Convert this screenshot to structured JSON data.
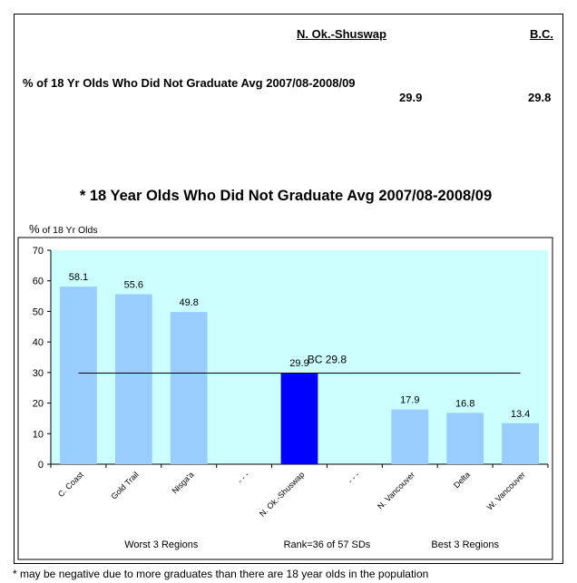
{
  "header": {
    "col1": "N. Ok.-Shuswap",
    "col2": "B.C.",
    "row_label": "% of 18 Yr Olds Who Did Not Graduate Avg 2007/08-2008/09",
    "val1": "29.9",
    "val2": "29.8"
  },
  "chart_data": {
    "type": "bar",
    "title": "* 18 Year Olds Who Did Not Graduate Avg 2007/08-2008/09",
    "ylabel_prefix": "%",
    "ylabel_rest": " of 18 Yr Olds",
    "ylim": [
      0,
      70
    ],
    "yticks": [
      0,
      10,
      20,
      30,
      40,
      50,
      60,
      70
    ],
    "grid": false,
    "categories": [
      "C. Coast",
      "Gold Trail",
      "Nisga'a",
      "- - -",
      "N. Ok.-Shuswap",
      "- - -",
      "N. Vancouver",
      "Delta",
      "W. Vancouver"
    ],
    "values": [
      58.1,
      55.6,
      49.8,
      null,
      29.9,
      null,
      17.9,
      16.8,
      13.4
    ],
    "data_labels": [
      "58.1",
      "55.6",
      "49.8",
      "",
      "29.9",
      "",
      "17.9",
      "16.8",
      "13.4"
    ],
    "highlight_index": 4,
    "reference_line": {
      "value": 29.8,
      "label": "BC 29.8"
    },
    "group_labels": [
      "Worst 3 Regions",
      "Rank=36 of 57 SDs",
      "Best 3 Regions"
    ],
    "colors": {
      "bar": "#99ccff",
      "highlight": "#0000ff",
      "plot_bg": "#ccffff"
    }
  },
  "footnote": "* may be negative due to more graduates than there are 18 year olds in the population"
}
